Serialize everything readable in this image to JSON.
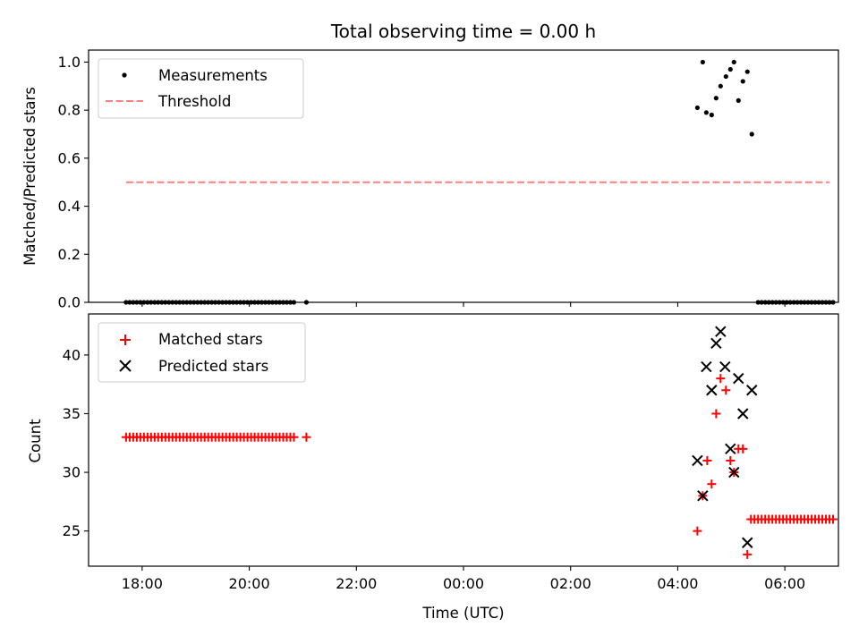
{
  "chart_data": [
    {
      "type": "scatter",
      "title": "Total observing time = 0.00 h",
      "ylabel": "Matched/Predicted stars",
      "xlabel": "",
      "xlim": [
        "17:00",
        "07:00"
      ],
      "ylim": [
        0,
        1.05
      ],
      "yticks": [
        "0.0",
        "0.2",
        "0.4",
        "0.6",
        "0.8",
        "1.0"
      ],
      "xticks": [
        "18:00",
        "20:00",
        "22:00",
        "00:00",
        "02:00",
        "04:00",
        "06:00"
      ],
      "legend_position": "top-left",
      "grid": false,
      "series": [
        {
          "name": "Measurements",
          "marker": "dot",
          "color": "#000000",
          "points": [
            [
              "17:42",
              0
            ],
            [
              "17:46",
              0
            ],
            [
              "17:50",
              0
            ],
            [
              "17:54",
              0
            ],
            [
              "17:58",
              0
            ],
            [
              "18:02",
              0
            ],
            [
              "18:06",
              0
            ],
            [
              "18:10",
              0
            ],
            [
              "18:14",
              0
            ],
            [
              "18:18",
              0
            ],
            [
              "18:22",
              0
            ],
            [
              "18:26",
              0
            ],
            [
              "18:30",
              0
            ],
            [
              "18:34",
              0
            ],
            [
              "18:38",
              0
            ],
            [
              "18:42",
              0
            ],
            [
              "18:46",
              0
            ],
            [
              "18:50",
              0
            ],
            [
              "18:54",
              0
            ],
            [
              "18:58",
              0
            ],
            [
              "19:02",
              0
            ],
            [
              "19:06",
              0
            ],
            [
              "19:10",
              0
            ],
            [
              "19:14",
              0
            ],
            [
              "19:18",
              0
            ],
            [
              "19:22",
              0
            ],
            [
              "19:26",
              0
            ],
            [
              "19:30",
              0
            ],
            [
              "19:34",
              0
            ],
            [
              "19:38",
              0
            ],
            [
              "19:42",
              0
            ],
            [
              "19:46",
              0
            ],
            [
              "19:50",
              0
            ],
            [
              "19:54",
              0
            ],
            [
              "19:58",
              0
            ],
            [
              "20:02",
              0
            ],
            [
              "20:06",
              0
            ],
            [
              "20:10",
              0
            ],
            [
              "20:14",
              0
            ],
            [
              "20:18",
              0
            ],
            [
              "20:22",
              0
            ],
            [
              "20:26",
              0
            ],
            [
              "20:30",
              0
            ],
            [
              "20:34",
              0
            ],
            [
              "20:38",
              0
            ],
            [
              "20:42",
              0
            ],
            [
              "20:46",
              0
            ],
            [
              "20:50",
              0
            ],
            [
              "21:04",
              0
            ],
            [
              "04:22",
              0.81
            ],
            [
              "04:28",
              1.0
            ],
            [
              "04:32",
              0.79
            ],
            [
              "04:38",
              0.78
            ],
            [
              "04:43",
              0.85
            ],
            [
              "04:48",
              0.9
            ],
            [
              "04:54",
              0.94
            ],
            [
              "04:59",
              0.97
            ],
            [
              "05:03",
              1.0
            ],
            [
              "05:08",
              0.84
            ],
            [
              "05:13",
              0.92
            ],
            [
              "05:18",
              0.96
            ],
            [
              "05:23",
              0.7
            ],
            [
              "05:30",
              0
            ],
            [
              "05:34",
              0
            ],
            [
              "05:38",
              0
            ],
            [
              "05:42",
              0
            ],
            [
              "05:46",
              0
            ],
            [
              "05:50",
              0
            ],
            [
              "05:54",
              0
            ],
            [
              "05:58",
              0
            ],
            [
              "06:02",
              0
            ],
            [
              "06:06",
              0
            ],
            [
              "06:10",
              0
            ],
            [
              "06:14",
              0
            ],
            [
              "06:18",
              0
            ],
            [
              "06:22",
              0
            ],
            [
              "06:26",
              0
            ],
            [
              "06:30",
              0
            ],
            [
              "06:34",
              0
            ],
            [
              "06:38",
              0
            ],
            [
              "06:42",
              0
            ],
            [
              "06:46",
              0
            ],
            [
              "06:50",
              0
            ],
            [
              "06:54",
              0
            ]
          ]
        },
        {
          "name": "Threshold",
          "marker": "dashed-line",
          "color": "#ff7f7f",
          "points": [
            [
              "17:42",
              0.5
            ],
            [
              "06:50",
              0.5
            ]
          ]
        }
      ]
    },
    {
      "type": "scatter",
      "title": "",
      "ylabel": "Count",
      "xlabel": "Time (UTC)",
      "xlim": [
        "17:00",
        "07:00"
      ],
      "ylim": [
        22,
        43.5
      ],
      "yticks": [
        "25",
        "30",
        "35",
        "40"
      ],
      "xticks": [
        "18:00",
        "20:00",
        "22:00",
        "00:00",
        "02:00",
        "04:00",
        "06:00"
      ],
      "legend_position": "top-left",
      "grid": false,
      "series": [
        {
          "name": "Matched stars",
          "marker": "plus",
          "color": "#ff0000",
          "points": [
            [
              "17:42",
              33
            ],
            [
              "17:46",
              33
            ],
            [
              "17:50",
              33
            ],
            [
              "17:54",
              33
            ],
            [
              "17:58",
              33
            ],
            [
              "18:02",
              33
            ],
            [
              "18:06",
              33
            ],
            [
              "18:10",
              33
            ],
            [
              "18:14",
              33
            ],
            [
              "18:18",
              33
            ],
            [
              "18:22",
              33
            ],
            [
              "18:26",
              33
            ],
            [
              "18:30",
              33
            ],
            [
              "18:34",
              33
            ],
            [
              "18:38",
              33
            ],
            [
              "18:42",
              33
            ],
            [
              "18:46",
              33
            ],
            [
              "18:50",
              33
            ],
            [
              "18:54",
              33
            ],
            [
              "18:58",
              33
            ],
            [
              "19:02",
              33
            ],
            [
              "19:06",
              33
            ],
            [
              "19:10",
              33
            ],
            [
              "19:14",
              33
            ],
            [
              "19:18",
              33
            ],
            [
              "19:22",
              33
            ],
            [
              "19:26",
              33
            ],
            [
              "19:30",
              33
            ],
            [
              "19:34",
              33
            ],
            [
              "19:38",
              33
            ],
            [
              "19:42",
              33
            ],
            [
              "19:46",
              33
            ],
            [
              "19:50",
              33
            ],
            [
              "19:54",
              33
            ],
            [
              "19:58",
              33
            ],
            [
              "20:02",
              33
            ],
            [
              "20:06",
              33
            ],
            [
              "20:10",
              33
            ],
            [
              "20:14",
              33
            ],
            [
              "20:18",
              33
            ],
            [
              "20:22",
              33
            ],
            [
              "20:26",
              33
            ],
            [
              "20:30",
              33
            ],
            [
              "20:34",
              33
            ],
            [
              "20:38",
              33
            ],
            [
              "20:42",
              33
            ],
            [
              "20:46",
              33
            ],
            [
              "20:50",
              33
            ],
            [
              "21:04",
              33
            ],
            [
              "04:22",
              25
            ],
            [
              "04:28",
              28
            ],
            [
              "04:33",
              31
            ],
            [
              "04:38",
              29
            ],
            [
              "04:43",
              35
            ],
            [
              "04:48",
              38
            ],
            [
              "04:54",
              37
            ],
            [
              "04:59",
              31
            ],
            [
              "05:03",
              30
            ],
            [
              "05:08",
              32
            ],
            [
              "05:13",
              32
            ],
            [
              "05:18",
              23
            ],
            [
              "05:22",
              26
            ],
            [
              "05:26",
              26
            ],
            [
              "05:30",
              26
            ],
            [
              "05:34",
              26
            ],
            [
              "05:38",
              26
            ],
            [
              "05:42",
              26
            ],
            [
              "05:46",
              26
            ],
            [
              "05:50",
              26
            ],
            [
              "05:54",
              26
            ],
            [
              "05:58",
              26
            ],
            [
              "06:02",
              26
            ],
            [
              "06:06",
              26
            ],
            [
              "06:10",
              26
            ],
            [
              "06:14",
              26
            ],
            [
              "06:18",
              26
            ],
            [
              "06:22",
              26
            ],
            [
              "06:26",
              26
            ],
            [
              "06:30",
              26
            ],
            [
              "06:34",
              26
            ],
            [
              "06:38",
              26
            ],
            [
              "06:42",
              26
            ],
            [
              "06:46",
              26
            ],
            [
              "06:50",
              26
            ],
            [
              "06:54",
              26
            ]
          ]
        },
        {
          "name": "Predicted stars",
          "marker": "x",
          "color": "#000000",
          "points": [
            [
              "04:22",
              31
            ],
            [
              "04:28",
              28
            ],
            [
              "04:32",
              39
            ],
            [
              "04:38",
              37
            ],
            [
              "04:43",
              41
            ],
            [
              "04:48",
              42
            ],
            [
              "04:53",
              39
            ],
            [
              "04:59",
              32
            ],
            [
              "05:03",
              30
            ],
            [
              "05:08",
              38
            ],
            [
              "05:13",
              35
            ],
            [
              "05:18",
              24
            ],
            [
              "05:23",
              37
            ]
          ]
        }
      ]
    }
  ]
}
